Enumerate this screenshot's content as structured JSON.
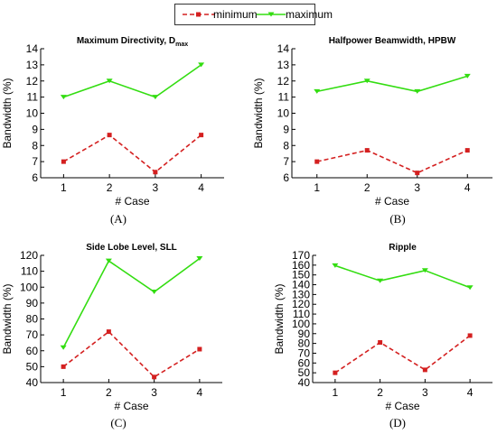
{
  "legend": {
    "minimum": {
      "label": "minimum",
      "color": "#d42020",
      "style": "dashed",
      "marker": "square"
    },
    "maximum": {
      "label": "maximum",
      "color": "#33dd11",
      "style": "solid",
      "marker": "triangle-down"
    }
  },
  "chart_data": [
    {
      "type": "line",
      "title": "Maximum Directivity, D",
      "title_subscript": "max",
      "panel_label": "(A)",
      "xlabel": "# Case",
      "ylabel": "Bandwidth (%)",
      "x": [
        1,
        2,
        3,
        4
      ],
      "ylim": [
        6,
        14
      ],
      "yticks": [
        6,
        7,
        8,
        9,
        10,
        11,
        12,
        13,
        14
      ],
      "series": [
        {
          "name": "minimum",
          "values": [
            7.0,
            8.65,
            6.35,
            8.65
          ]
        },
        {
          "name": "maximum",
          "values": [
            11.0,
            12.0,
            11.0,
            13.0
          ]
        }
      ]
    },
    {
      "type": "line",
      "title": "Halfpower Beamwidth, HPBW",
      "panel_label": "(B)",
      "xlabel": "# Case",
      "ylabel": "Bandwidth (%)",
      "x": [
        1,
        2,
        3,
        4
      ],
      "ylim": [
        6,
        14
      ],
      "yticks": [
        6,
        7,
        8,
        9,
        10,
        11,
        12,
        13,
        14
      ],
      "series": [
        {
          "name": "minimum",
          "values": [
            7.0,
            7.7,
            6.3,
            7.7
          ]
        },
        {
          "name": "maximum",
          "values": [
            11.35,
            12.0,
            11.35,
            12.3
          ]
        }
      ]
    },
    {
      "type": "line",
      "title": "Side Lobe Level, SLL",
      "panel_label": "(C)",
      "xlabel": "# Case",
      "ylabel": "Bandwidth (%)",
      "x": [
        1,
        2,
        3,
        4
      ],
      "ylim": [
        40,
        120
      ],
      "yticks": [
        40,
        50,
        60,
        70,
        80,
        90,
        100,
        110,
        120
      ],
      "series": [
        {
          "name": "minimum",
          "values": [
            50.0,
            72.0,
            43.5,
            61.0
          ]
        },
        {
          "name": "maximum",
          "values": [
            62.0,
            116.5,
            97.0,
            118.0
          ]
        }
      ]
    },
    {
      "type": "line",
      "title": "Ripple",
      "panel_label": "(D)",
      "xlabel": "# Case",
      "ylabel": "Bandwidth (%)",
      "x": [
        1,
        2,
        3,
        4
      ],
      "ylim": [
        40,
        170
      ],
      "yticks": [
        40,
        50,
        60,
        70,
        80,
        90,
        100,
        110,
        120,
        130,
        140,
        150,
        160,
        170
      ],
      "series": [
        {
          "name": "minimum",
          "values": [
            50.0,
            81.0,
            53.0,
            88.0
          ]
        },
        {
          "name": "maximum",
          "values": [
            159.5,
            144.0,
            154.5,
            137.0
          ]
        }
      ]
    }
  ]
}
